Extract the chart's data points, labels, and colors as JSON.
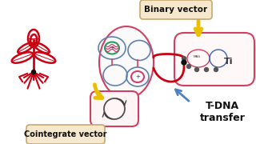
{
  "bg_color": "#ffffff",
  "title_binary": "Binary vector",
  "title_cointegrate": "Cointegrate vector",
  "title_tdna": "T-DNA\ntransfer",
  "label_ti": "Ti",
  "plant_color": "#cc0011",
  "bact_outline": "#d04060",
  "bact_fill": "#fff8fa",
  "hex_color": "#6080b0",
  "plasmid_green": "#20a060",
  "plasmid_pink": "#d04070",
  "plasmid_blue": "#4060b0",
  "arrow_yellow": "#e8c000",
  "arrow_blue": "#5080c0",
  "text_color": "#111111",
  "label_box_color": "#f5e8cc",
  "label_box_edge": "#c8a870"
}
